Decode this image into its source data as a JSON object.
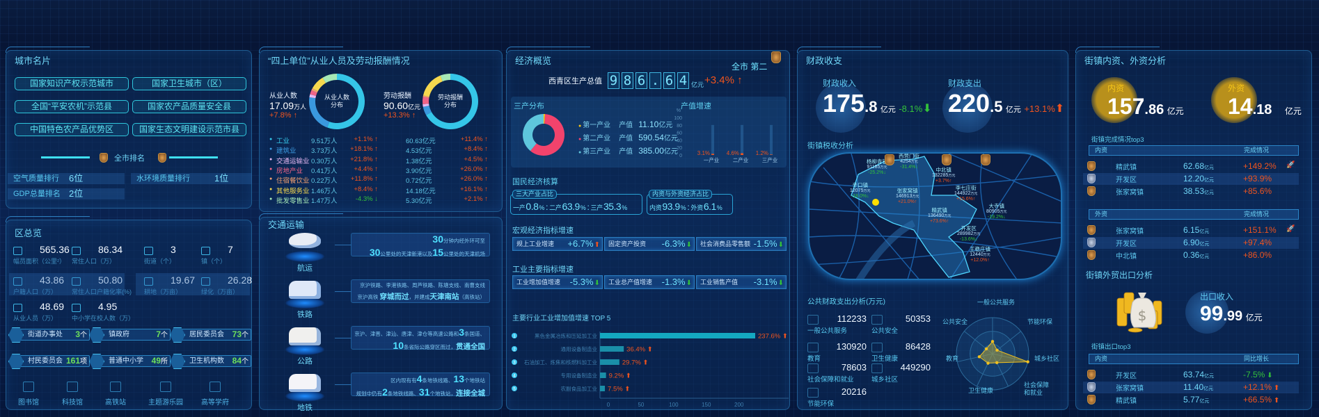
{
  "city_card": {
    "title": "城市名片",
    "honors": [
      "国家知识产权示范城市",
      "国家卫生城市（区）",
      "全国“平安农机”示范县",
      "国家农产品质量安全县",
      "中国特色农产品优势区",
      "国家生态文明建设示范市县"
    ],
    "rank_title": "全市排名",
    "ranks": [
      {
        "label": "空气质量排行",
        "value": "6位"
      },
      {
        "label": "水环境质量排行",
        "value": "1位"
      },
      {
        "label": "GDP总量排名",
        "value": "2位"
      }
    ]
  },
  "overview": {
    "title": "区总览",
    "stats": [
      {
        "value": "565.36",
        "label": "幅员面积（公里²）"
      },
      {
        "value": "86.34",
        "label": "常住人口（万）"
      },
      {
        "value": "3",
        "label": "街道（个）"
      },
      {
        "value": "7",
        "label": "镇（个）"
      },
      {
        "value": "43.86",
        "label": "户籍人口（万）"
      },
      {
        "value": "50.80",
        "label": "常住人口户籍化率(%)"
      },
      {
        "value": "19.67",
        "label": "耕地（万亩）"
      },
      {
        "value": "26.28",
        "label": "绿化（万亩）"
      },
      {
        "value": "48.69",
        "label": "从业人员（万）"
      },
      {
        "value": "4.95",
        "label": "中小学在校人数（万）"
      }
    ],
    "facilities": [
      {
        "label": "街道办事处",
        "value": "3",
        "unit": "个"
      },
      {
        "label": "镇政府",
        "value": "7",
        "unit": "个"
      },
      {
        "label": "居民委员会",
        "value": "73",
        "unit": "个"
      },
      {
        "label": "村民委员会",
        "value": "161",
        "unit": "项"
      },
      {
        "label": "普通中小学",
        "value": "49",
        "unit": "所"
      },
      {
        "label": "卫生机构数",
        "value": "84",
        "unit": "个"
      }
    ],
    "landmarks": [
      "图书馆",
      "科技馆",
      "高铁站",
      "主题游乐园",
      "高等学府"
    ]
  },
  "four_up": {
    "title": "“四上单位”从业人员及劳动报酬情况",
    "employees": {
      "label": "从业人数",
      "value": "17.09",
      "unit": "万人",
      "change": "+7.8%",
      "direction": "up"
    },
    "compensation": {
      "label": "劳动报酬",
      "value": "90.60",
      "unit": "亿元",
      "change": "+13.3%",
      "direction": "up"
    },
    "donut_employees_center": [
      "从业人数",
      "分布"
    ],
    "donut_compensation_center": [
      "劳动报酬",
      "分布"
    ],
    "industries": [
      {
        "name": "工业",
        "employees": "9.51万人",
        "emp_change": "+1.1%",
        "emp_dir": "up",
        "comp": "60.63亿元",
        "comp_change": "+11.4%",
        "comp_dir": "up",
        "color": "#35c6e8",
        "emp_value": 9.51,
        "comp_value": 60.63
      },
      {
        "name": "建筑业",
        "employees": "3.73万人",
        "emp_change": "+18.1%",
        "emp_dir": "up",
        "comp": "4.53亿元",
        "comp_change": "+8.4%",
        "comp_dir": "up",
        "color": "#3a98de",
        "emp_value": 3.73,
        "comp_value": 4.53
      },
      {
        "name": "交通运输业",
        "employees": "0.30万人",
        "emp_change": "+21.8%",
        "emp_dir": "up",
        "comp": "1.38亿元",
        "comp_change": "+4.5%",
        "comp_dir": "up",
        "color": "#e6b8f2",
        "emp_value": 0.3,
        "comp_value": 1.38
      },
      {
        "name": "房地产业",
        "employees": "0.41万人",
        "emp_change": "+4.4%",
        "emp_dir": "up",
        "comp": "3.90亿元",
        "comp_change": "+26.0%",
        "comp_dir": "up",
        "color": "#f06488",
        "emp_value": 0.41,
        "comp_value": 3.9
      },
      {
        "name": "住宿餐饮业",
        "employees": "0.22万人",
        "emp_change": "+11.8%",
        "emp_dir": "up",
        "comp": "0.72亿元",
        "comp_change": "+26.0%",
        "comp_dir": "up",
        "color": "#f3a070",
        "emp_value": 0.22,
        "comp_value": 0.72
      },
      {
        "name": "其他服务业",
        "employees": "1.46万人",
        "emp_change": "+8.4%",
        "emp_dir": "up",
        "comp": "14.18亿元",
        "comp_change": "+16.1%",
        "comp_dir": "up",
        "color": "#f6d84e",
        "emp_value": 1.46,
        "comp_value": 14.18
      },
      {
        "name": "批发零售业",
        "employees": "1.47万人",
        "emp_change": "-4.3%",
        "emp_dir": "down",
        "comp": "5.30亿元",
        "comp_change": "+2.1%",
        "comp_dir": "up",
        "color": "#a6e8b6",
        "emp_value": 1.47,
        "comp_value": 5.3
      }
    ]
  },
  "transport": {
    "title": "交通运输",
    "items": [
      {
        "label": "航运",
        "lines": [
          [
            {
              "t": "30",
              "s": "b"
            },
            {
              "t": "分钟内经外环可至"
            }
          ],
          [
            {
              "t": "30",
              "s": "b"
            },
            {
              "t": "公里处的天津新港以及"
            },
            {
              "t": "15",
              "s": "b"
            },
            {
              "t": "公里处的天津机场"
            }
          ]
        ]
      },
      {
        "label": "铁路",
        "lines": [
          [
            {
              "t": "京沪铁路、李港铁路、周芦铁路、陈塘支线、南曹支线"
            }
          ],
          [
            {
              "t": "京沪高铁 "
            },
            {
              "t": "穿城而过",
              "s": "i"
            },
            {
              "t": "，并建成"
            },
            {
              "t": "天津南站",
              "s": "i"
            },
            {
              "t": "（高铁站）"
            }
          ]
        ]
      },
      {
        "label": "公路",
        "lines": [
          [
            {
              "t": "京沪、津晋、津汕、唐津、津仓等高速公路和"
            },
            {
              "t": "3",
              "s": "b"
            },
            {
              "t": "条国道、"
            }
          ],
          [
            {
              "t": "10",
              "s": "b"
            },
            {
              "t": "条省际公路穿区而过，"
            },
            {
              "t": "贯通全国",
              "s": "i"
            }
          ]
        ]
      },
      {
        "label": "地铁",
        "lines": [
          [
            {
              "t": "区内现有有"
            },
            {
              "t": "4",
              "s": "b"
            },
            {
              "t": "条地铁线路、"
            },
            {
              "t": "13",
              "s": "b"
            },
            {
              "t": "个地铁站"
            }
          ],
          [
            {
              "t": "规划中仍有"
            },
            {
              "t": "2",
              "s": "b"
            },
            {
              "t": "条地铁线路、"
            },
            {
              "t": "31",
              "s": "b"
            },
            {
              "t": "个地铁站，"
            },
            {
              "t": "连接全城",
              "s": "i"
            }
          ]
        ]
      }
    ]
  },
  "economy": {
    "title": "经济概览",
    "gdp_label": "西青区生产总值",
    "gdp_digits": [
      "9",
      "8",
      "6",
      ".",
      "6",
      "4"
    ],
    "gdp_unit": "亿元",
    "gdp_change": "+3.4%",
    "gdp_direction": "up",
    "city_rank": "全市 第二",
    "sector_title": "三产分布",
    "sectors": [
      {
        "name": "第一产业",
        "label": "产值",
        "value": "11.10",
        "unit": "亿元",
        "color": "#f5c518",
        "amount": 11.1
      },
      {
        "name": "第二产业",
        "label": "产值",
        "value": "590.54",
        "unit": "亿元",
        "color": "#f2436c",
        "amount": 590.54
      },
      {
        "name": "第三产业",
        "label": "产值",
        "value": "385.00",
        "unit": "亿元",
        "color": "#5ec6dc",
        "amount": 385.0
      }
    ],
    "growth_chart": {
      "type": "bar",
      "title": "产值增速",
      "unit": "%",
      "categories": [
        "一产业",
        "二产业",
        "三产业"
      ],
      "values": [
        3.1,
        4.6,
        1.2
      ],
      "labels": [
        "3.1%",
        "4.6%",
        "1.2%"
      ],
      "yticks": [
        0,
        20,
        40,
        60,
        80,
        100
      ],
      "ylim": [
        0,
        100
      ]
    },
    "accounts_title": "国民经济核算",
    "industry_share": {
      "title": "三大产业占比",
      "parts": [
        {
          "label": "一产",
          "value": "0.8"
        },
        {
          "label": "二产",
          "value": "63.9"
        },
        {
          "label": "三产",
          "value": "35.3"
        }
      ],
      "unit": "%"
    },
    "capital_share": {
      "title": "内资与外资经济占比",
      "parts": [
        {
          "label": "内资",
          "value": "93.9"
        },
        {
          "label": "外资",
          "value": "6.1"
        }
      ],
      "unit": "%"
    },
    "macro_title": "宏观经济指标增速",
    "macro": [
      {
        "label": "规上工业增速",
        "value": "+6.7%",
        "direction": "up"
      },
      {
        "label": "固定资产投资",
        "value": "-6.3%",
        "direction": "down"
      },
      {
        "label": "社会消费品零售额",
        "value": "-1.5%",
        "direction": "down"
      }
    ],
    "industrial_title": "工业主要指标增速",
    "industrial": [
      {
        "label": "工业增加值增速",
        "value": "-5.3%",
        "direction": "down"
      },
      {
        "label": "工业总产值增速",
        "value": "-1.3%",
        "direction": "down"
      },
      {
        "label": "工业销售产值",
        "value": "-3.1%",
        "direction": "down"
      }
    ]
  },
  "chart_data": {
    "type": "bar",
    "orientation": "horizontal",
    "title": "主要行业工业增加值增速 TOP 5",
    "categories": [
      "黑色金属冶炼和压延加工业",
      "通用设备制造业",
      "石油加工、炼焦和核燃料加工业",
      "专用设备制造业",
      "农副食品加工业"
    ],
    "values": [
      237.6,
      36.4,
      29.7,
      9.2,
      7.5
    ],
    "labels": [
      "237.6%",
      "36.4%",
      "29.7%",
      "9.2%",
      "7.5%"
    ],
    "ranks": [
      "1",
      "2",
      "3",
      "4",
      "5"
    ],
    "xticks": [
      0,
      50,
      100,
      150,
      200
    ],
    "xlim": [
      0,
      250
    ],
    "grid": false
  },
  "finance": {
    "title": "财政收支",
    "income": {
      "label": "财政收入",
      "int": "175",
      "dec": ".8",
      "unit": "亿元",
      "change": "-8.1%",
      "direction": "down"
    },
    "expense": {
      "label": "财政支出",
      "int": "220",
      "dec": ".5",
      "unit": "亿元",
      "change": "+13.1%",
      "direction": "up"
    },
    "tax_title": "街镇税收分析",
    "towns": [
      {
        "name": "杨柳青镇",
        "value": "91185",
        "unit": "万元",
        "change": "-25.2%",
        "direction": "down"
      },
      {
        "name": "西营门街",
        "value": "4254",
        "unit": "万元",
        "change": "-31.4%",
        "direction": "down"
      },
      {
        "name": "中北镇",
        "value": "132285",
        "unit": "万元",
        "change": "+3.7%",
        "direction": "up"
      },
      {
        "name": "辛口镇",
        "value": "12075",
        "unit": "万元",
        "change": "-18.0%",
        "direction": "down"
      },
      {
        "name": "张家窝镇",
        "value": "146913",
        "unit": "万元",
        "change": "+21.0%",
        "direction": "up"
      },
      {
        "name": "李七庄街",
        "value": "144922",
        "unit": "万元",
        "change": "+15.6%",
        "direction": "up"
      },
      {
        "name": "精武镇",
        "value": "136490",
        "unit": "万元",
        "change": "+73.6%",
        "direction": "up"
      },
      {
        "name": "大寺镇",
        "value": "80905",
        "unit": "万元",
        "change": "-19.2%",
        "direction": "down"
      },
      {
        "name": "开发区",
        "value": "289982",
        "unit": "万元",
        "change": "-13.6%",
        "direction": "down"
      },
      {
        "name": "王稳庄镇",
        "value": "12440",
        "unit": "万元",
        "change": "+12.0%",
        "direction": "up"
      }
    ],
    "public_title": "公共财政支出分析(万元)",
    "public_items": [
      {
        "label": "一般公共服务",
        "value": "112233",
        "amount": 112233
      },
      {
        "label": "公共安全",
        "value": "50353",
        "amount": 50353
      },
      {
        "label": "教育",
        "value": "130920",
        "amount": 130920
      },
      {
        "label": "卫生健康",
        "value": "86428",
        "amount": 86428
      },
      {
        "label": "社会保障和就业",
        "value": "78603",
        "amount": 78603
      },
      {
        "label": "城乡社区",
        "value": "449290",
        "amount": 449290
      },
      {
        "label": "节能环保",
        "value": "20216",
        "amount": 20216
      }
    ],
    "radar_axes": [
      "一般公共服务",
      "节能环保",
      "城乡社区",
      "社会保障和就业",
      "卫生健康",
      "教育",
      "公共安全"
    ],
    "radar_color": "#f0c020"
  },
  "investment": {
    "title": "街镇内资、外资分析",
    "domestic": {
      "label": "内资",
      "int": "157",
      "dec": ".86",
      "unit": "亿元"
    },
    "foreign": {
      "label": "外资",
      "int": "14",
      "dec": ".18",
      "unit": "亿元"
    },
    "top3_title": "街镇完成情况top3",
    "domestic_header": [
      "内资",
      "完成情况"
    ],
    "domestic_rows": [
      {
        "name": "精武镇",
        "value": "62.68",
        "unit": "亿元",
        "change": "+149.2%",
        "medal": "gold",
        "rocket": true
      },
      {
        "name": "开发区",
        "value": "12.20",
        "unit": "亿元",
        "change": "+93.9%",
        "medal": "silver",
        "rocket": false
      },
      {
        "name": "张家窝镇",
        "value": "38.53",
        "unit": "亿元",
        "change": "+85.6%",
        "medal": "bronze",
        "rocket": false
      }
    ],
    "foreign_header": [
      "外资",
      "完成情况"
    ],
    "foreign_rows": [
      {
        "name": "张家窝镇",
        "value": "6.15",
        "unit": "亿元",
        "change": "+151.1%",
        "medal": "gold",
        "rocket": true
      },
      {
        "name": "开发区",
        "value": "6.90",
        "unit": "亿元",
        "change": "+97.4%",
        "medal": "silver",
        "rocket": false
      },
      {
        "name": "中北镇",
        "value": "0.36",
        "unit": "亿元",
        "change": "+86.0%",
        "medal": "bronze",
        "rocket": false
      }
    ],
    "export_title": "街镇外贸出口分析",
    "export": {
      "label": "出口收入",
      "int": "99",
      "dec": ".99",
      "unit": "亿元"
    },
    "export_top3_title": "街镇出口top3",
    "export_header": [
      "内资",
      "同比增长"
    ],
    "export_rows": [
      {
        "name": "开发区",
        "value": "63.74",
        "unit": "亿元",
        "change": "-7.5%",
        "direction": "down",
        "medal": "gold"
      },
      {
        "name": "张家窝镇",
        "value": "11.40",
        "unit": "亿元",
        "change": "+12.1%",
        "direction": "up",
        "medal": "silver"
      },
      {
        "name": "精武镇",
        "value": "5.77",
        "unit": "亿元",
        "change": "+66.5%",
        "direction": "up",
        "medal": "bronze"
      }
    ]
  },
  "colors": {
    "accent": "#3ed6f5",
    "up": "#f0541e",
    "down": "#33c23a",
    "gold": "#c9a020"
  }
}
